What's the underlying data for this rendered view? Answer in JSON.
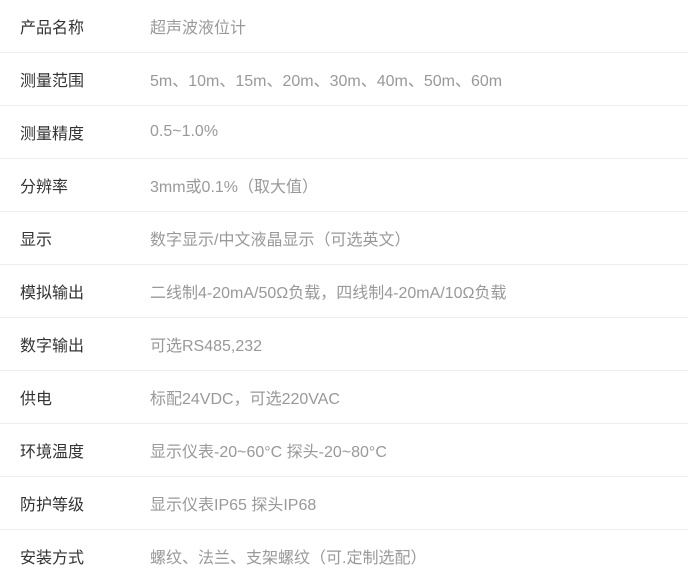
{
  "specs": [
    {
      "label": "产品名称",
      "value": "超声波液位计"
    },
    {
      "label": "测量范围",
      "value": "5m、10m、15m、20m、30m、40m、50m、60m"
    },
    {
      "label": "测量精度",
      "value": "0.5~1.0%"
    },
    {
      "label": "分辨率",
      "value": "3mm或0.1%（取大值）"
    },
    {
      "label": "显示",
      "value": "数字显示/中文液晶显示（可选英文）"
    },
    {
      "label": "模拟输出",
      "value": "二线制4-20mA/50Ω负载，四线制4-20mA/10Ω负载"
    },
    {
      "label": "数字输出",
      "value": "可选RS485,232"
    },
    {
      "label": "供电",
      "value": "标配24VDC，可选220VAC"
    },
    {
      "label": "环境温度",
      "value": "显示仪表-20~60°C  探头-20~80°C"
    },
    {
      "label": "防护等级",
      "value": "显示仪表IP65  探头IP68"
    },
    {
      "label": "安装方式",
      "value": "螺纹、法兰、支架螺纹（可.定制选配）"
    }
  ],
  "styling": {
    "label_color": "#333333",
    "value_color": "#999999",
    "border_color": "#eeeeee",
    "background_color": "#ffffff",
    "font_size": 16,
    "row_padding_vertical": 14,
    "row_padding_horizontal": 20,
    "label_width": 130
  }
}
